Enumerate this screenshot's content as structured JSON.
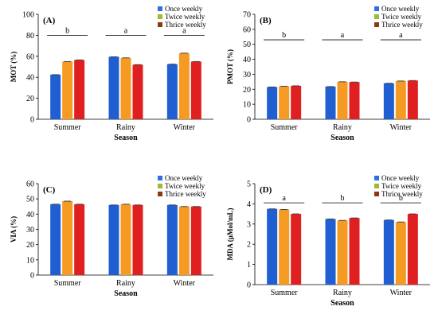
{
  "series_colors": [
    "#1f5fd1",
    "#f59a23",
    "#e02020"
  ],
  "legend_swatches": [
    "#2f6fe0",
    "#9dbb2e",
    "#8b3a10"
  ],
  "chart_data": [
    {
      "panel": "(A)",
      "type": "bar",
      "categories": [
        "Summer",
        "Rainy",
        "Winter"
      ],
      "series": [
        {
          "name": "Once weekly",
          "values": [
            42.5,
            59.5,
            52.5
          ]
        },
        {
          "name": "Twice weekly",
          "values": [
            55,
            58.5,
            63
          ]
        },
        {
          "name": "Thrice weekly",
          "values": [
            56.5,
            52,
            55
          ]
        }
      ],
      "ylim": [
        0,
        100
      ],
      "yticks": [
        0,
        20,
        40,
        60,
        80,
        100
      ],
      "ylabel": "MOT (%)",
      "xlabel": "Season",
      "significance": [
        "b",
        "a",
        "a"
      ],
      "sig_line_y": 80,
      "legend_position": "top-right"
    },
    {
      "panel": "(B)",
      "type": "bar",
      "categories": [
        "Summer",
        "Rainy",
        "Winter"
      ],
      "series": [
        {
          "name": "Once weekly",
          "values": [
            21.5,
            21.8,
            24
          ]
        },
        {
          "name": "Twice weekly",
          "values": [
            22,
            25,
            25.5
          ]
        },
        {
          "name": "Thrice weekly",
          "values": [
            22.3,
            24.8,
            25.8
          ]
        }
      ],
      "ylim": [
        0,
        70
      ],
      "yticks": [
        0,
        10,
        20,
        30,
        40,
        50,
        60,
        70
      ],
      "ylabel": "PMOT (%)",
      "xlabel": "Season",
      "significance": [
        "b",
        "a",
        "a"
      ],
      "sig_line_y": 53,
      "legend_position": "top-right"
    },
    {
      "panel": "(C)",
      "type": "bar",
      "categories": [
        "Summer",
        "Rainy",
        "Winter"
      ],
      "series": [
        {
          "name": "Once weekly",
          "values": [
            46.5,
            46,
            46
          ]
        },
        {
          "name": "Twice weekly",
          "values": [
            48.5,
            46.5,
            45
          ]
        },
        {
          "name": "Thrice weekly",
          "values": [
            46.5,
            46,
            45
          ]
        }
      ],
      "ylim": [
        0,
        60
      ],
      "yticks": [
        0,
        10,
        20,
        30,
        40,
        50,
        60
      ],
      "ylabel": "VIA (%)",
      "xlabel": "Season",
      "significance": [],
      "sig_line_y": null,
      "legend_position": "top-right"
    },
    {
      "panel": "(D)",
      "type": "bar",
      "categories": [
        "Summer",
        "Rainy",
        "Winter"
      ],
      "series": [
        {
          "name": "Once weekly",
          "values": [
            3.75,
            3.25,
            3.2
          ]
        },
        {
          "name": "Twice weekly",
          "values": [
            3.72,
            3.18,
            3.1
          ]
        },
        {
          "name": "Thrice weekly",
          "values": [
            3.5,
            3.3,
            3.5
          ]
        }
      ],
      "ylim": [
        0,
        5
      ],
      "yticks": [
        0,
        1,
        2,
        3,
        4,
        5
      ],
      "ylabel": "MDA (µMol/mL)",
      "xlabel": "Season",
      "significance": [
        "a",
        "b",
        "b"
      ],
      "sig_line_y": 4.05,
      "legend_position": "top-right"
    }
  ]
}
